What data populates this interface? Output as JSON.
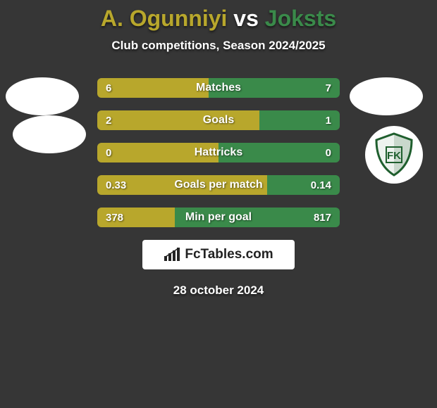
{
  "title": {
    "left": "A. Ogunniyi",
    "vs": " vs ",
    "right": "Joksts",
    "color_left": "#b8a72c",
    "color_vs": "#ffffff",
    "color_right": "#3a8a4a"
  },
  "subtitle": "Club competitions, Season 2024/2025",
  "colors": {
    "bar_left": "#b8a72c",
    "bar_right": "#3a8a4a",
    "background": "#363636"
  },
  "bars": [
    {
      "label": "Matches",
      "left_val": "6",
      "right_val": "7",
      "left_pct": 46,
      "right_pct": 54
    },
    {
      "label": "Goals",
      "left_val": "2",
      "right_val": "1",
      "left_pct": 67,
      "right_pct": 33
    },
    {
      "label": "Hattricks",
      "left_val": "0",
      "right_val": "0",
      "left_pct": 50,
      "right_pct": 50
    },
    {
      "label": "Goals per match",
      "left_val": "0.33",
      "right_val": "0.14",
      "left_pct": 70,
      "right_pct": 30
    },
    {
      "label": "Min per goal",
      "left_val": "378",
      "right_val": "817",
      "left_pct": 32,
      "right_pct": 68
    }
  ],
  "brand": "FcTables.com",
  "date": "28 october 2024",
  "crest_letters": "FK"
}
